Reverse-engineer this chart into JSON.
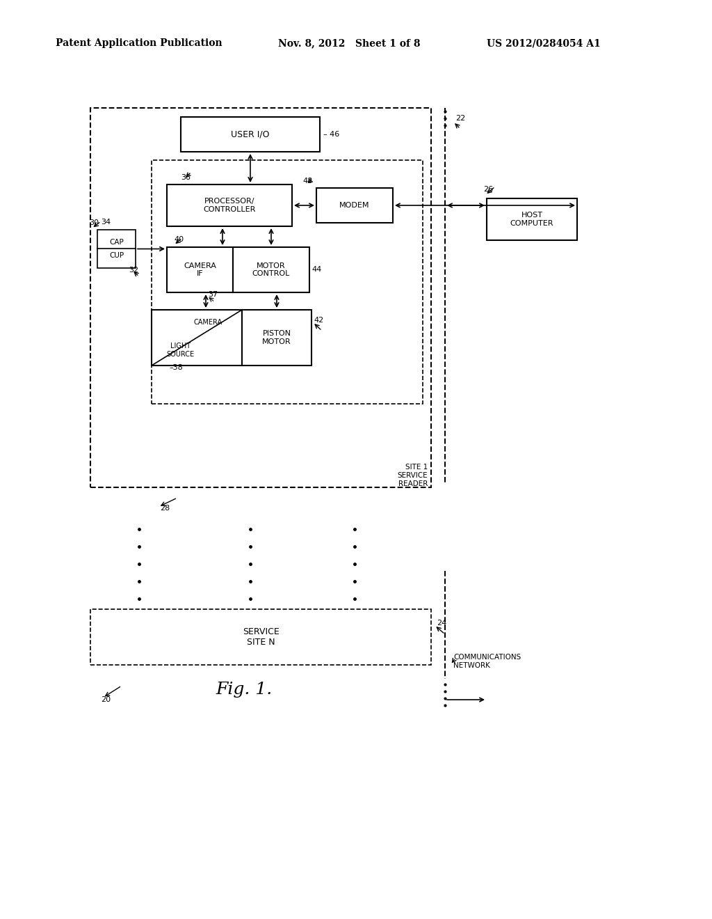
{
  "bg_color": "#ffffff",
  "header_left": "Patent Application Publication",
  "header_mid": "Nov. 8, 2012   Sheet 1 of 8",
  "header_right": "US 2012/0284054 A1",
  "fig_label": "Fig. 1.",
  "fig_number": "20",
  "boxes": {
    "user_io": {
      "label": "USER I/O",
      "ref": "46"
    },
    "processor": {
      "label": "PROCESSOR/\nCONTROLLER",
      "ref": "36"
    },
    "modem": {
      "label": "MODEM",
      "ref": "48"
    },
    "camera_if": {
      "label": "CAMERA\nIF",
      "ref": ""
    },
    "motor_control": {
      "label": "MOTOR\nCONTROL",
      "ref": "44"
    },
    "camera_light": {
      "label": "CAMERA\nLIGHT\nSOURCE",
      "ref": "38"
    },
    "piston_motor": {
      "label": "PISTON\nMOTOR",
      "ref": "42"
    },
    "host_computer": {
      "label": "HOST\nCOMPUTER",
      "ref": "26"
    },
    "cap_cup": {
      "label": "CAP\nCUP",
      "ref": "34"
    },
    "service_site_n": {
      "label": "SERVICE\nSITE N",
      "ref": "24"
    }
  },
  "refs": {
    "ref_30": "30",
    "ref_32": "32",
    "ref_37": "37",
    "ref_40": "40",
    "ref_28": "28",
    "ref_22": "22"
  }
}
